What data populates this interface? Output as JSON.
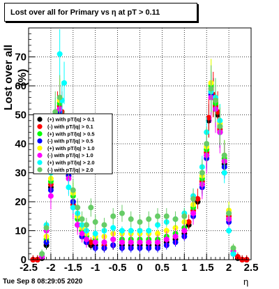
{
  "title": "Lost over all for Primary vs   η at pT > 0.11",
  "timestamp": "Tue Sep  8 08:29:05 2020",
  "chart_data": {
    "type": "scatter",
    "title": "Lost over all for Primary vs   η at pT > 0.11",
    "xlabel": "η",
    "ylabel": "Lost over all (%)",
    "xlim": [
      -2.5,
      2.5
    ],
    "ylim": [
      0,
      80
    ],
    "xticks": [
      "-2.5",
      "-2",
      "-1.5",
      "-1",
      "-0.5",
      "0",
      "0.5",
      "1",
      "1.5",
      "2",
      "2.5"
    ],
    "yticks": [
      "0",
      "10",
      "20",
      "30",
      "40",
      "50",
      "60",
      "70"
    ],
    "grid": true,
    "legend_position": "left-middle",
    "series": [
      {
        "name": "(+) with pT/|q| > 0.1",
        "color": "#000000",
        "x": [
          -2.4,
          -2.3,
          -2.2,
          -2.1,
          -2.0,
          -1.95,
          -1.9,
          -1.85,
          -1.8,
          -1.75,
          -1.7,
          -1.65,
          -1.6,
          -1.5,
          -1.4,
          -1.3,
          -1.2,
          -1.1,
          -1.0,
          -0.8,
          -0.6,
          -0.4,
          -0.2,
          0.0,
          0.2,
          0.4,
          0.6,
          0.8,
          1.0,
          1.1,
          1.2,
          1.3,
          1.4,
          1.5,
          1.55,
          1.6,
          1.65,
          1.7,
          1.75,
          1.8,
          1.9,
          2.0,
          2.1,
          2.2,
          2.3,
          2.4
        ],
        "y": [
          0,
          0,
          0.5,
          5,
          25,
          35,
          45,
          50,
          52,
          50,
          40,
          35,
          30,
          20,
          12,
          8,
          6,
          5,
          5,
          4,
          5,
          5,
          5,
          5,
          5,
          5,
          6,
          7,
          9,
          12,
          16,
          20,
          26,
          36,
          48,
          58,
          56,
          52,
          50,
          44,
          33,
          14,
          2,
          0.5,
          0,
          0
        ]
      },
      {
        "name": "(-) with pT/|q| > 0.1",
        "color": "#ff0000",
        "x": [
          -2.4,
          -2.3,
          -2.2,
          -2.1,
          -2.0,
          -1.95,
          -1.9,
          -1.85,
          -1.8,
          -1.75,
          -1.7,
          -1.65,
          -1.6,
          -1.5,
          -1.4,
          -1.3,
          -1.2,
          -1.1,
          -1.0,
          -0.8,
          -0.6,
          -0.4,
          -0.2,
          0.0,
          0.2,
          0.4,
          0.6,
          0.8,
          1.0,
          1.1,
          1.2,
          1.3,
          1.4,
          1.5,
          1.55,
          1.6,
          1.65,
          1.7,
          1.75,
          1.8,
          1.9,
          2.0,
          2.1,
          2.2,
          2.3,
          2.4
        ],
        "y": [
          0,
          0,
          1,
          6,
          26,
          36,
          46,
          51,
          53,
          51,
          41,
          34,
          29,
          19,
          12,
          8,
          7,
          6,
          6,
          5,
          5,
          6,
          6,
          6,
          6,
          6,
          7,
          8,
          10,
          13,
          17,
          21,
          27,
          37,
          49,
          59,
          57,
          53,
          51,
          45,
          34,
          15,
          3,
          1,
          0,
          0
        ]
      },
      {
        "name": "(+) with pT/|q| > 0.5",
        "color": "#00ff00",
        "x": [
          -2.2,
          -2.1,
          -2.0,
          -1.9,
          -1.8,
          -1.7,
          -1.6,
          -1.5,
          -1.4,
          -1.3,
          -1.2,
          -1.0,
          -0.8,
          -0.6,
          -0.4,
          -0.2,
          0.0,
          0.2,
          0.4,
          0.6,
          0.8,
          1.0,
          1.2,
          1.4,
          1.5,
          1.6,
          1.7,
          1.8,
          1.9,
          2.0,
          2.1
        ],
        "y": [
          1,
          7,
          27,
          47,
          54,
          42,
          31,
          22,
          14,
          10,
          8,
          7,
          6,
          7,
          7,
          7,
          7,
          7,
          7,
          8,
          9,
          11,
          18,
          28,
          38,
          60,
          54,
          46,
          35,
          16,
          3
        ]
      },
      {
        "name": "(-) with pT/|q| > 0.5",
        "color": "#0000ff",
        "x": [
          -2.2,
          -2.1,
          -2.0,
          -1.9,
          -1.8,
          -1.7,
          -1.6,
          -1.5,
          -1.4,
          -1.3,
          -1.2,
          -1.0,
          -0.8,
          -0.6,
          -0.4,
          -0.2,
          0.0,
          0.2,
          0.4,
          0.6,
          0.8,
          1.0,
          1.2,
          1.4,
          1.5,
          1.6,
          1.7,
          1.8,
          1.9,
          2.0,
          2.1
        ],
        "y": [
          1,
          6,
          24,
          44,
          51,
          40,
          29,
          20,
          12,
          8,
          6,
          4,
          4,
          5,
          4,
          4,
          4,
          4,
          4,
          5,
          6,
          8,
          15,
          25,
          35,
          57,
          52,
          44,
          32,
          13,
          2
        ]
      },
      {
        "name": "(+) with pT/|q| > 1.0",
        "color": "#ffff00",
        "x": [
          -2.2,
          -2.1,
          -2.0,
          -1.9,
          -1.8,
          -1.7,
          -1.6,
          -1.5,
          -1.4,
          -1.3,
          -1.2,
          -1.0,
          -0.8,
          -0.6,
          -0.4,
          -0.2,
          0.0,
          0.2,
          0.4,
          0.6,
          0.8,
          1.0,
          1.2,
          1.4,
          1.5,
          1.6,
          1.7,
          1.8,
          1.9,
          2.0,
          2.1
        ],
        "y": [
          2,
          8,
          28,
          48,
          55,
          43,
          32,
          23,
          15,
          11,
          9,
          8,
          8,
          9,
          9,
          9,
          9,
          9,
          9,
          10,
          11,
          13,
          19,
          29,
          39,
          61,
          55,
          47,
          36,
          17,
          4
        ]
      },
      {
        "name": "(-) with pT/|q| > 1.0",
        "color": "#ff00ff",
        "x": [
          -2.2,
          -2.1,
          -2.0,
          -1.9,
          -1.8,
          -1.7,
          -1.6,
          -1.5,
          -1.4,
          -1.3,
          -1.2,
          -1.0,
          -0.8,
          -0.6,
          -0.4,
          -0.2,
          0.0,
          0.2,
          0.4,
          0.6,
          0.8,
          1.0,
          1.2,
          1.4,
          1.5,
          1.6,
          1.7,
          1.8,
          1.9,
          2.0,
          2.1
        ],
        "y": [
          1,
          10,
          22,
          45,
          52,
          38,
          28,
          18,
          12,
          9,
          7,
          6,
          6,
          7,
          6,
          6,
          6,
          6,
          6,
          7,
          8,
          10,
          16,
          26,
          36,
          56,
          52,
          44,
          34,
          14,
          3
        ]
      },
      {
        "name": "(+) with pT/|q| > 2.0",
        "color": "#00ffff",
        "x": [
          -2.2,
          -2.1,
          -2.0,
          -1.9,
          -1.8,
          -1.75,
          -1.7,
          -1.6,
          -1.5,
          -1.4,
          -1.3,
          -1.2,
          -1.0,
          -0.8,
          -0.6,
          -0.4,
          -0.2,
          0.0,
          0.2,
          0.4,
          0.6,
          0.8,
          1.0,
          1.2,
          1.4,
          1.5,
          1.6,
          1.7,
          1.8,
          1.9,
          2.0,
          2.1
        ],
        "y": [
          2,
          12,
          30,
          50,
          71,
          55,
          61,
          25,
          18,
          16,
          12,
          10,
          9,
          10,
          11,
          10,
          10,
          10,
          10,
          12,
          13,
          14,
          16,
          22,
          32,
          44,
          58,
          56,
          48,
          30,
          10,
          2
        ]
      },
      {
        "name": "(-) with pT/|q| > 2.0",
        "color": "#66cc66",
        "x": [
          -2.2,
          -2.1,
          -2.0,
          -1.9,
          -1.8,
          -1.7,
          -1.6,
          -1.5,
          -1.4,
          -1.3,
          -1.2,
          -1.1,
          -1.0,
          -0.8,
          -0.6,
          -0.4,
          -0.2,
          0.0,
          0.2,
          0.4,
          0.6,
          0.8,
          1.0,
          1.2,
          1.4,
          1.5,
          1.6,
          1.7,
          1.8,
          1.9,
          2.0,
          2.1
        ],
        "y": [
          2,
          11,
          31,
          51,
          56,
          45,
          33,
          24,
          18,
          14,
          12,
          18,
          13,
          12,
          15,
          16,
          14,
          13,
          14,
          15,
          15,
          14,
          15,
          21,
          30,
          40,
          59,
          55,
          46,
          36,
          16,
          4
        ]
      }
    ]
  }
}
